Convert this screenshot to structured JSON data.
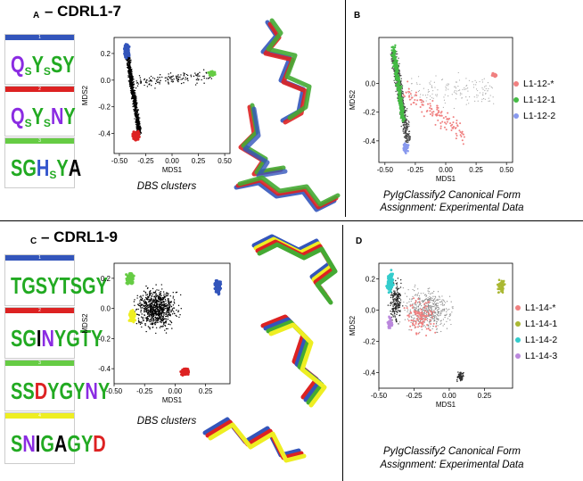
{
  "panels": {
    "a": {
      "letter": "A",
      "title": "– CDRL1-7",
      "caption": "DBS clusters"
    },
    "b": {
      "letter": "B",
      "caption_line1": "PyIgClassify2 Canonical Form",
      "caption_line2": "Assignment: Experimental Data"
    },
    "c": {
      "letter": "C",
      "title": "– CDRL1-9",
      "caption": "DBS clusters"
    },
    "d": {
      "letter": "D",
      "caption_line1": "PyIgClassify2 Canonical Form",
      "caption_line2": "Assignment: Experimental Data"
    }
  },
  "logos": {
    "a": [
      {
        "num": "1",
        "color": "#3355bb",
        "letters": "QsYsSY"
      },
      {
        "num": "2",
        "color": "#dd2222",
        "letters": "QsYsNY"
      },
      {
        "num": "3",
        "color": "#66cc44",
        "letters": "SGHsYA"
      }
    ],
    "c": [
      {
        "num": "1",
        "color": "#3355bb",
        "letters": "TGsYTSGY"
      },
      {
        "num": "2",
        "color": "#dd2222",
        "letters": "SGINYGTY"
      },
      {
        "num": "3",
        "color": "#66cc44",
        "letters": "SSDYGYNY"
      },
      {
        "num": "4",
        "color": "#eeee22",
        "letters": "SNIGAGYD"
      }
    ]
  },
  "chart_data": [
    {
      "id": "A-scatter",
      "type": "scatter",
      "xlabel": "MDS1",
      "ylabel": "MDS2",
      "xlim": [
        -0.55,
        0.55
      ],
      "ylim": [
        -0.55,
        0.32
      ],
      "xticks": [
        "-0.50",
        "-0.25",
        "0.00",
        "0.25",
        "0.50"
      ],
      "yticks": [
        "0.2",
        "0.0",
        "-0.2",
        "-0.4"
      ],
      "clusters": [
        {
          "color": "#3355bb",
          "x": -0.43,
          "y": 0.22
        },
        {
          "color": "#66cc44",
          "x": 0.38,
          "y": 0.05
        },
        {
          "color": "#dd2222",
          "x": -0.34,
          "y": -0.42
        }
      ]
    },
    {
      "id": "B-scatter",
      "type": "scatter",
      "xlabel": "MDS1",
      "ylabel": "MDS2",
      "xlim": [
        -0.55,
        0.55
      ],
      "ylim": [
        -0.55,
        0.32
      ],
      "xticks": [
        "-0.50",
        "-0.25",
        "0.00",
        "0.25",
        "0.50"
      ],
      "yticks": [
        "0.0",
        "-0.2",
        "-0.4"
      ],
      "legend": [
        {
          "label": "L1-12-*",
          "color": "#f08080"
        },
        {
          "label": "L1-12-1",
          "color": "#44bb44"
        },
        {
          "label": "L1-12-2",
          "color": "#8899ee"
        }
      ]
    },
    {
      "id": "C-scatter",
      "type": "scatter",
      "xlabel": "MDS1",
      "ylabel": "MDS2",
      "xlim": [
        -0.5,
        0.45
      ],
      "ylim": [
        -0.5,
        0.3
      ],
      "xticks": [
        "-0.50",
        "-0.25",
        "0.00",
        "0.25"
      ],
      "yticks": [
        "0.2",
        "0.0",
        "-0.2",
        "-0.4"
      ],
      "clusters": [
        {
          "color": "#66cc44",
          "x": -0.37,
          "y": 0.2
        },
        {
          "color": "#eeee22",
          "x": -0.35,
          "y": -0.05
        },
        {
          "color": "#3355bb",
          "x": 0.35,
          "y": 0.15
        },
        {
          "color": "#dd2222",
          "x": 0.08,
          "y": -0.42
        }
      ]
    },
    {
      "id": "D-scatter",
      "type": "scatter",
      "xlabel": "MDS1",
      "ylabel": "MDS2",
      "xlim": [
        -0.5,
        0.45
      ],
      "ylim": [
        -0.5,
        0.3
      ],
      "xticks": [
        "-0.50",
        "-0.25",
        "0.00",
        "0.25"
      ],
      "yticks": [
        "0.2",
        "0.0",
        "-0.2",
        "-0.4"
      ],
      "legend": [
        {
          "label": "L1-14-*",
          "color": "#f08080"
        },
        {
          "label": "L1-14-1",
          "color": "#aab833"
        },
        {
          "label": "L1-14-2",
          "color": "#33cccc"
        },
        {
          "label": "L1-14-3",
          "color": "#bb88dd"
        }
      ]
    }
  ]
}
